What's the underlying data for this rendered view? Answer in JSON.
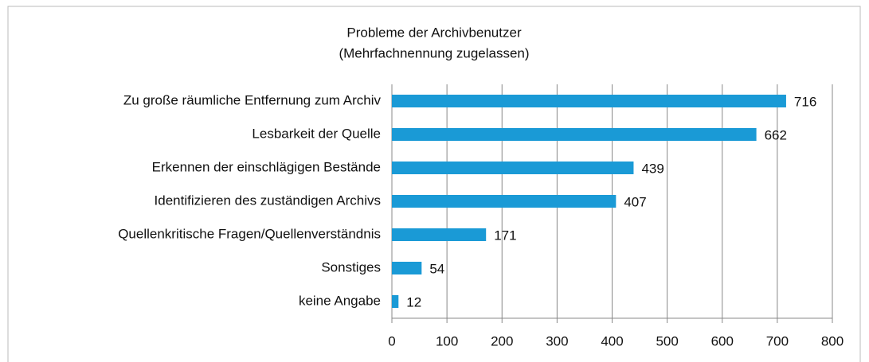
{
  "chart_data": {
    "type": "bar",
    "orientation": "horizontal",
    "title": "Probleme der Archivbenutzer",
    "subtitle": "(Mehrfachnennung zugelassen)",
    "categories": [
      "Zu große räumliche Entfernung zum Archiv",
      "Lesbarkeit der Quelle",
      "Erkennen der einschlägigen Bestände",
      "Identifizieren des zuständigen Archivs",
      "Quellenkritische Fragen/Quellenverständnis",
      "Sonstiges",
      "keine Angabe"
    ],
    "values": [
      716,
      662,
      439,
      407,
      171,
      54,
      12
    ],
    "color": "#1a9ad6",
    "xlim": [
      0,
      800
    ],
    "xticks": [
      0,
      100,
      200,
      300,
      400,
      500,
      600,
      700,
      800
    ],
    "grid": true
  }
}
